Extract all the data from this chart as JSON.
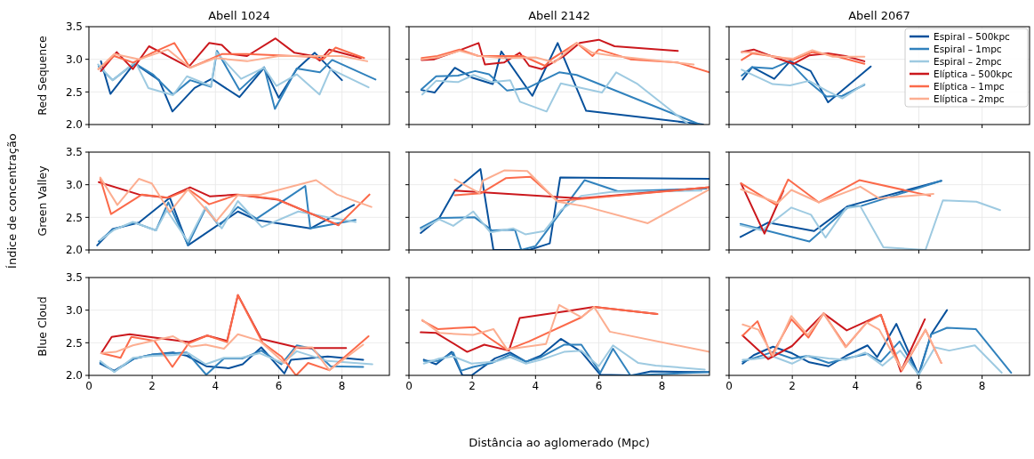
{
  "chart_data": [
    {
      "type": "line",
      "title": "Abell 1024",
      "ylabel": "Red Sequence",
      "xlim": [
        0,
        9.5
      ],
      "xticks": [
        0,
        2,
        4,
        6,
        8
      ],
      "ylim": [
        2,
        3.5
      ],
      "yticks": [
        {
          "value": 2,
          "label": "2.0"
        },
        {
          "value": 2.5,
          "label": "2.5"
        },
        {
          "value": 3,
          "label": "3.0"
        },
        {
          "value": 3.5,
          "label": "3.5"
        }
      ],
      "grid": true,
      "tick_labels": "y",
      "series": [
        {
          "color": "#08519c",
          "x": [
            0.38,
            0.68,
            1.44,
            2.22,
            2.64,
            3.34,
            3.88,
            4.76,
            5.54,
            6.0,
            6.57,
            7.14,
            8.0
          ],
          "values": [
            2.97,
            2.47,
            2.94,
            2.68,
            2.2,
            2.56,
            2.7,
            2.42,
            2.87,
            2.41,
            2.85,
            3.1,
            2.68
          ]
        },
        {
          "color": "#3182bd",
          "x": [
            0.31,
            0.75,
            1.44,
            2.02,
            2.66,
            3.2,
            3.86,
            4.05,
            4.76,
            5.54,
            5.88,
            6.57,
            7.3,
            7.69,
            9.06
          ],
          "values": [
            2.89,
            2.68,
            2.94,
            2.77,
            2.46,
            2.68,
            2.58,
            3.13,
            2.53,
            2.88,
            2.24,
            2.86,
            2.8,
            2.99,
            2.69
          ]
        },
        {
          "color": "#9ecae1",
          "x": [
            0.29,
            0.75,
            1.47,
            1.88,
            2.66,
            3.1,
            3.86,
            4.03,
            4.81,
            5.54,
            5.93,
            6.57,
            7.29,
            7.64,
            8.84
          ],
          "values": [
            2.92,
            2.68,
            2.96,
            2.56,
            2.45,
            2.74,
            2.59,
            3.11,
            2.7,
            2.87,
            2.59,
            2.77,
            2.46,
            2.85,
            2.57
          ]
        },
        {
          "color": "#cb181d",
          "x": [
            0.38,
            0.88,
            1.39,
            1.9,
            2.3,
            3.15,
            3.8,
            4.2,
            4.5,
            5.0,
            5.9,
            6.5,
            7.1,
            7.3,
            7.6,
            8.6
          ],
          "values": [
            2.82,
            3.11,
            2.85,
            3.2,
            3.1,
            2.88,
            3.25,
            3.22,
            3.08,
            3.05,
            3.32,
            3.1,
            3.05,
            2.98,
            3.15,
            3.02
          ]
        },
        {
          "color": "#fb6a4a",
          "x": [
            0.3,
            0.8,
            1.4,
            2.0,
            2.7,
            3.2,
            4.2,
            5.0,
            6.0,
            7.0,
            7.4,
            7.8,
            8.7
          ],
          "values": [
            2.85,
            3.05,
            2.95,
            3.1,
            3.25,
            2.87,
            3.08,
            3.08,
            3.06,
            3.04,
            3.0,
            3.18,
            3.02
          ]
        },
        {
          "color": "#fcae91",
          "x": [
            0.3,
            0.8,
            1.6,
            2.5,
            3.2,
            4.0,
            5.0,
            6.0,
            7.0,
            8.0,
            8.8
          ],
          "values": [
            2.85,
            3.08,
            3.0,
            3.15,
            2.87,
            3.02,
            2.97,
            3.05,
            3.05,
            3.05,
            2.97
          ]
        }
      ]
    },
    {
      "type": "line",
      "title": "Abell 2142",
      "xlim": [
        0,
        9.5
      ],
      "xticks": [
        0,
        2,
        4,
        6,
        8
      ],
      "ylim": [
        2,
        3.5
      ],
      "yticks": [
        {
          "value": 2,
          "label": null
        },
        {
          "value": 2.5,
          "label": null
        },
        {
          "value": 3,
          "label": null
        },
        {
          "value": 3.5,
          "label": null
        }
      ],
      "grid": true,
      "tick_labels": false,
      "series": [
        {
          "color": "#08519c",
          "x": [
            0.39,
            0.81,
            1.45,
            1.99,
            2.65,
            2.92,
            3.9,
            4.7,
            5.6,
            9.3
          ],
          "values": [
            2.53,
            2.49,
            2.87,
            2.72,
            2.62,
            3.12,
            2.44,
            3.25,
            2.21,
            2.0
          ]
        },
        {
          "color": "#3182bd",
          "x": [
            0.39,
            0.86,
            1.55,
            2.09,
            2.53,
            3.1,
            3.75,
            4.75,
            5.3,
            9.2
          ],
          "values": [
            2.54,
            2.74,
            2.75,
            2.82,
            2.77,
            2.52,
            2.56,
            2.8,
            2.76,
            2.0
          ]
        },
        {
          "color": "#9ecae1",
          "x": [
            0.42,
            0.86,
            1.55,
            2.04,
            2.63,
            3.2,
            3.51,
            4.35,
            4.8,
            6.1,
            6.55,
            7.2,
            8.85
          ],
          "values": [
            2.46,
            2.67,
            2.65,
            2.76,
            2.65,
            2.68,
            2.35,
            2.2,
            2.63,
            2.49,
            2.8,
            2.63,
            2.0
          ]
        },
        {
          "color": "#cb181d",
          "x": [
            0.4,
            0.8,
            1.5,
            2.2,
            2.4,
            3.0,
            3.5,
            3.8,
            4.2,
            4.9,
            5.4,
            6.0,
            6.5,
            8.5
          ],
          "values": [
            2.99,
            3.0,
            3.12,
            3.25,
            2.92,
            2.95,
            3.1,
            2.9,
            2.85,
            3.05,
            3.25,
            3.3,
            3.2,
            3.13
          ]
        },
        {
          "color": "#fb6a4a",
          "x": [
            0.4,
            0.9,
            1.6,
            2.2,
            3.0,
            3.6,
            4.3,
            4.5,
            5.3,
            5.8,
            6.0,
            7.0,
            8.5,
            9.5
          ],
          "values": [
            3.02,
            3.05,
            3.15,
            3.05,
            3.05,
            3.05,
            2.9,
            3.0,
            3.25,
            3.05,
            3.15,
            3.0,
            2.95,
            2.8
          ]
        },
        {
          "color": "#fcae91",
          "x": [
            0.4,
            0.9,
            1.6,
            2.2,
            3.0,
            4.0,
            4.6,
            5.3,
            5.8,
            6.5,
            7.5,
            9.0
          ],
          "values": [
            3.0,
            3.03,
            3.13,
            3.05,
            3.02,
            3.03,
            2.95,
            3.25,
            3.1,
            3.05,
            3.0,
            2.92
          ]
        }
      ]
    },
    {
      "type": "line",
      "title": "Abell 2067",
      "xlim": [
        0,
        9.5
      ],
      "xticks": [
        0,
        2,
        4,
        6,
        8
      ],
      "ylim": [
        2,
        3.5
      ],
      "yticks": [
        {
          "value": 2,
          "label": null
        },
        {
          "value": 2.5,
          "label": null
        },
        {
          "value": 3,
          "label": null
        },
        {
          "value": 3.5,
          "label": null
        }
      ],
      "grid": true,
      "tick_labels": false,
      "legend": "top right",
      "series": [
        {
          "name": "Espiral – 500kpc",
          "color": "#08519c",
          "x": [
            0.43,
            0.73,
            1.43,
            1.93,
            2.58,
            3.13,
            4.48
          ],
          "values": [
            2.69,
            2.88,
            2.7,
            2.97,
            2.82,
            2.34,
            2.89
          ]
        },
        {
          "name": "Espiral – 1mpc",
          "color": "#3182bd",
          "x": [
            0.4,
            0.73,
            1.38,
            1.9,
            2.53,
            3.08,
            3.58,
            4.28
          ],
          "values": [
            2.75,
            2.88,
            2.86,
            2.97,
            2.65,
            2.43,
            2.44,
            2.61
          ]
        },
        {
          "name": "Espiral – 2mpc",
          "color": "#9ecae1",
          "x": [
            0.4,
            1.38,
            1.93,
            2.53,
            3.08,
            3.58,
            4.28
          ],
          "values": [
            2.84,
            2.62,
            2.6,
            2.67,
            2.52,
            2.4,
            2.62
          ]
        },
        {
          "name": "Elíptica – 500kpc",
          "color": "#cb181d",
          "x": [
            0.4,
            0.78,
            1.38,
            2.03,
            2.53,
            3.13,
            3.68,
            4.28
          ],
          "values": [
            3.11,
            3.15,
            3.04,
            2.93,
            3.06,
            3.09,
            3.05,
            2.97
          ]
        },
        {
          "name": "Elíptica – 1mpc",
          "color": "#fb6a4a",
          "x": [
            0.4,
            0.73,
            1.48,
            2.03,
            2.63,
            3.28,
            4.28
          ],
          "values": [
            2.99,
            3.09,
            3.04,
            2.99,
            3.11,
            3.06,
            2.93
          ]
        },
        {
          "name": "Elíptica – 2mpc",
          "color": "#fcae91",
          "x": [
            0.4,
            0.88,
            1.38,
            2.03,
            2.63,
            3.28,
            4.28
          ],
          "values": [
            3.11,
            3.1,
            3.04,
            3.01,
            3.14,
            3.04,
            3.04
          ]
        }
      ]
    },
    {
      "type": "line",
      "ylabel": "Green Valley",
      "annotations": [
        "Índice de concentração"
      ],
      "xlim": [
        0,
        9.5
      ],
      "xticks": [
        0,
        2,
        4,
        6,
        8
      ],
      "ylim": [
        2,
        3.5
      ],
      "yticks": [
        {
          "value": 2,
          "label": "2.0"
        },
        {
          "value": 2.5,
          "label": "2.5"
        },
        {
          "value": 3,
          "label": "3.0"
        },
        {
          "value": 3.5,
          "label": "3.5"
        }
      ],
      "grid": true,
      "tick_labels": "y",
      "series": [
        {
          "color": "#08519c",
          "x": [
            0.26,
            0.75,
            1.58,
            2.56,
            3.13,
            4.71,
            5.3,
            7.0,
            8.38
          ],
          "values": [
            2.07,
            2.32,
            2.42,
            2.8,
            2.07,
            2.59,
            2.46,
            2.33,
            2.69
          ]
        },
        {
          "color": "#3182bd",
          "x": [
            0.31,
            0.75,
            1.44,
            2.12,
            2.51,
            3.13,
            3.69,
            4.12,
            4.71,
            5.3,
            6.84,
            7.0,
            8.43
          ],
          "values": [
            2.13,
            2.31,
            2.42,
            2.3,
            2.73,
            2.08,
            2.64,
            2.37,
            2.66,
            2.48,
            2.98,
            2.33,
            2.46
          ]
        },
        {
          "color": "#9ecae1",
          "x": [
            0.36,
            0.8,
            1.39,
            2.12,
            2.46,
            3.13,
            3.69,
            4.2,
            4.71,
            5.47,
            6.62,
            7.55,
            8.43
          ],
          "values": [
            2.15,
            2.31,
            2.43,
            2.3,
            2.61,
            2.13,
            2.66,
            2.33,
            2.75,
            2.35,
            2.59,
            2.5,
            2.43
          ]
        },
        {
          "color": "#cb181d",
          "x": [
            0.31,
            1.58,
            2.46,
            3.2,
            3.83,
            4.66,
            5.98,
            7.89
          ],
          "values": [
            3.04,
            2.85,
            2.8,
            2.96,
            2.82,
            2.85,
            2.77,
            2.38
          ]
        },
        {
          "color": "#fb6a4a",
          "x": [
            0.36,
            0.7,
            1.68,
            2.51,
            3.15,
            3.8,
            4.71,
            5.93,
            7.89,
            8.87
          ],
          "values": [
            3.09,
            2.55,
            2.85,
            2.8,
            2.93,
            2.7,
            2.85,
            2.78,
            2.38,
            2.85
          ]
        },
        {
          "color": "#fcae91",
          "x": [
            0.36,
            0.9,
            1.58,
            1.99,
            2.56,
            3.13,
            4.03,
            4.71,
            5.44,
            7.18,
            7.84,
            8.93
          ],
          "values": [
            3.11,
            2.69,
            3.09,
            3.02,
            2.58,
            2.93,
            2.44,
            2.84,
            2.85,
            3.07,
            2.85,
            2.66
          ]
        }
      ]
    },
    {
      "type": "line",
      "xlim": [
        0,
        9.5
      ],
      "xticks": [
        0,
        2,
        4,
        6,
        8
      ],
      "ylim": [
        2,
        3.5
      ],
      "yticks": [
        {
          "value": 2,
          "label": null
        },
        {
          "value": 2.5,
          "label": null
        },
        {
          "value": 3,
          "label": null
        },
        {
          "value": 3.5,
          "label": null
        }
      ],
      "grid": true,
      "tick_labels": false,
      "series": [
        {
          "color": "#08519c",
          "x": [
            0.37,
            0.96,
            1.45,
            2.26,
            2.67,
            3.8,
            4.45,
            4.78,
            9.5
          ],
          "values": [
            2.26,
            2.49,
            2.91,
            3.24,
            2.0,
            2.0,
            2.1,
            3.11,
            3.09
          ]
        },
        {
          "color": "#3182bd",
          "x": [
            0.37,
            0.96,
            2.08,
            2.62,
            3.35,
            3.55,
            4.0,
            5.55,
            6.6,
            9.4
          ],
          "values": [
            2.34,
            2.49,
            2.5,
            2.3,
            2.31,
            2.0,
            2.06,
            3.07,
            2.9,
            2.94
          ]
        },
        {
          "color": "#9ecae1",
          "x": [
            0.37,
            0.96,
            1.4,
            2.03,
            2.57,
            3.3,
            3.68,
            4.28,
            4.8,
            5.45,
            6.4,
            9.25
          ],
          "values": [
            2.31,
            2.47,
            2.37,
            2.59,
            2.27,
            2.33,
            2.24,
            2.29,
            2.61,
            2.83,
            2.89,
            2.91
          ]
        },
        {
          "color": "#cb181d",
          "x": [
            1.45,
            5.4,
            9.5
          ],
          "values": [
            2.91,
            2.79,
            2.96
          ]
        },
        {
          "color": "#fb6a4a",
          "x": [
            1.45,
            2.28,
            3.06,
            3.84,
            4.7,
            5.4,
            9.5
          ],
          "values": [
            2.84,
            2.87,
            3.1,
            3.12,
            2.75,
            2.78,
            2.96
          ]
        },
        {
          "color": "#fcae91",
          "x": [
            1.45,
            2.23,
            2.33,
            3.01,
            3.74,
            4.7,
            5.55,
            7.55,
            9.5
          ],
          "values": [
            3.08,
            2.87,
            3.06,
            3.22,
            3.21,
            2.74,
            2.67,
            2.41,
            2.93
          ]
        }
      ]
    },
    {
      "type": "line",
      "xlim": [
        0,
        9.5
      ],
      "xticks": [
        0,
        2,
        4,
        6,
        8
      ],
      "ylim": [
        2,
        3.5
      ],
      "yticks": [
        {
          "value": 2,
          "label": null
        },
        {
          "value": 2.5,
          "label": null
        },
        {
          "value": 3,
          "label": null
        },
        {
          "value": 3.5,
          "label": null
        }
      ],
      "grid": true,
      "tick_labels": false,
      "series": [
        {
          "color": "#08519c",
          "x": [
            0.36,
            1.24,
            2.69,
            3.75,
            6.71
          ],
          "values": [
            2.2,
            2.42,
            2.29,
            2.67,
            3.06
          ]
        },
        {
          "color": "#3182bd",
          "x": [
            0.36,
            2.54,
            3.8,
            4.15,
            6.71
          ],
          "values": [
            2.4,
            2.13,
            2.67,
            2.67,
            3.06
          ]
        },
        {
          "color": "#9ecae1",
          "x": [
            0.36,
            1.04,
            1.97,
            2.59,
            3.05,
            3.7,
            4.15,
            4.88,
            6.21,
            6.76,
            7.82,
            8.57
          ],
          "values": [
            2.38,
            2.3,
            2.65,
            2.54,
            2.19,
            2.64,
            2.67,
            2.04,
            2.0,
            2.76,
            2.74,
            2.61
          ]
        },
        {
          "color": "#cb181d",
          "x": [
            0.38,
            1.12,
            1.72
          ],
          "values": [
            3.02,
            2.25,
            2.91
          ]
        },
        {
          "color": "#fb6a4a",
          "x": [
            0.38,
            1.49,
            1.87,
            2.84,
            4.12,
            6.36
          ],
          "values": [
            3.02,
            2.69,
            3.08,
            2.73,
            3.07,
            2.83
          ]
        },
        {
          "color": "#fcae91",
          "x": [
            0.38,
            1.54,
            1.97,
            2.84,
            4.15,
            4.75,
            6.46
          ],
          "values": [
            2.93,
            2.72,
            2.92,
            2.73,
            2.97,
            2.79,
            2.86
          ]
        }
      ]
    },
    {
      "type": "line",
      "ylabel": "Blue Cloud",
      "xlim": [
        0,
        9.5
      ],
      "xticks": [
        0,
        2,
        4,
        6,
        8
      ],
      "ylim": [
        2,
        3.5
      ],
      "yticks": [
        {
          "value": 2,
          "label": "2.0"
        },
        {
          "value": 2.5,
          "label": "2.5"
        },
        {
          "value": 3,
          "label": "3.0"
        },
        {
          "value": 3.5,
          "label": "3.5"
        }
      ],
      "grid": true,
      "series": [
        {
          "color": "#08519c",
          "x": [
            0.36,
            0.8,
            1.44,
            2.02,
            2.66,
            3.1,
            3.71,
            4.42,
            4.86,
            5.45,
            6.18,
            6.39,
            7.55,
            8.67
          ],
          "values": [
            2.18,
            2.07,
            2.26,
            2.32,
            2.35,
            2.3,
            2.14,
            2.11,
            2.17,
            2.43,
            2.03,
            2.24,
            2.29,
            2.24
          ]
        },
        {
          "color": "#3182bd",
          "x": [
            0.36,
            0.8,
            1.44,
            2.02,
            3.1,
            3.71,
            4.27,
            4.86,
            5.45,
            6.08,
            6.57,
            7.06,
            7.64,
            8.67
          ],
          "values": [
            2.2,
            2.06,
            2.26,
            2.32,
            2.35,
            2.01,
            2.26,
            2.26,
            2.38,
            2.17,
            2.46,
            2.41,
            2.14,
            2.13
          ]
        },
        {
          "color": "#9ecae1",
          "x": [
            0.36,
            0.8,
            1.39,
            2.02,
            2.66,
            3.15,
            3.69,
            4.27,
            4.81,
            5.4,
            6.13,
            6.57,
            7.55,
            8.96
          ],
          "values": [
            2.22,
            2.05,
            2.27,
            2.3,
            2.31,
            2.34,
            2.17,
            2.27,
            2.27,
            2.34,
            2.19,
            2.37,
            2.22,
            2.17
          ]
        },
        {
          "color": "#cb181d",
          "x": [
            0.39,
            0.72,
            1.29,
            2.07,
            3.15,
            3.74,
            4.37,
            4.71,
            5.45,
            6.67,
            8.13
          ],
          "values": [
            2.34,
            2.59,
            2.63,
            2.58,
            2.51,
            2.61,
            2.53,
            3.23,
            2.56,
            2.42,
            2.42
          ]
        },
        {
          "color": "#fb6a4a",
          "x": [
            0.39,
            1.0,
            1.34,
            2.07,
            2.64,
            3.15,
            3.74,
            4.37,
            4.71,
            5.49,
            6.08,
            6.55,
            6.93,
            7.6,
            8.84
          ],
          "values": [
            2.34,
            2.27,
            2.59,
            2.53,
            2.13,
            2.49,
            2.61,
            2.51,
            3.23,
            2.5,
            2.29,
            2.0,
            2.19,
            2.08,
            2.6
          ]
        },
        {
          "color": "#fcae91",
          "x": [
            0.39,
            0.85,
            1.39,
            2.66,
            3.23,
            3.69,
            4.27,
            4.71,
            5.4,
            6.18,
            6.57,
            7.06,
            7.6,
            8.67
          ],
          "values": [
            2.34,
            2.36,
            2.46,
            2.6,
            2.44,
            2.47,
            2.41,
            2.63,
            2.53,
            2.19,
            2.43,
            2.43,
            2.08,
            2.47
          ]
        }
      ]
    },
    {
      "type": "line",
      "xlabel": "Distância ao aglomerado (Mpc)",
      "xlim": [
        0,
        9.5
      ],
      "xticks": [
        0,
        2,
        4,
        6,
        8
      ],
      "ylim": [
        2,
        3.5
      ],
      "yticks": [
        {
          "value": 2,
          "label": null
        },
        {
          "value": 2.5,
          "label": null
        },
        {
          "value": 3,
          "label": null
        },
        {
          "value": 3.5,
          "label": null
        }
      ],
      "grid": true,
      "tick_labels": "x",
      "series": [
        {
          "color": "#08519c",
          "x": [
            0.47,
            0.86,
            1.35,
            1.69,
            1.98,
            2.72,
            3.2,
            3.7,
            4.16,
            4.8,
            5.45,
            6.05,
            7.05,
            7.65,
            9.5
          ],
          "values": [
            2.24,
            2.17,
            2.36,
            2.0,
            2.0,
            2.26,
            2.35,
            2.21,
            2.3,
            2.56,
            2.36,
            2.01,
            2.0,
            2.06,
            2.05
          ]
        },
        {
          "color": "#3182bd",
          "x": [
            0.47,
            0.91,
            1.4,
            1.64,
            2.03,
            2.62,
            3.2,
            3.7,
            4.18,
            4.9,
            5.45,
            6.05,
            6.45,
            7.0,
            9.5
          ],
          "values": [
            2.22,
            2.22,
            2.35,
            2.07,
            2.13,
            2.19,
            2.32,
            2.21,
            2.28,
            2.47,
            2.47,
            2.04,
            2.41,
            2.0,
            2.05
          ]
        },
        {
          "color": "#9ecae1",
          "x": [
            0.47,
            0.96,
            1.4,
            1.98,
            2.72,
            3.2,
            3.7,
            4.18,
            4.9,
            5.45,
            6.0,
            6.45,
            7.25,
            7.8,
            9.35
          ],
          "values": [
            2.18,
            2.26,
            2.29,
            2.18,
            2.21,
            2.28,
            2.18,
            2.24,
            2.36,
            2.38,
            2.14,
            2.46,
            2.19,
            2.15,
            2.09
          ]
        },
        {
          "color": "#cb181d",
          "x": [
            0.37,
            0.86,
            1.84,
            2.38,
            3.16,
            3.5,
            5.04,
            5.85,
            7.85
          ],
          "values": [
            2.66,
            2.65,
            2.36,
            2.47,
            2.38,
            2.88,
            2.99,
            3.05,
            2.94
          ]
        },
        {
          "color": "#fb6a4a",
          "x": [
            0.42,
            0.91,
            2.08,
            2.52,
            3.1,
            3.79,
            5.45,
            5.85,
            7.85
          ],
          "values": [
            2.84,
            2.71,
            2.74,
            2.58,
            2.39,
            2.52,
            2.89,
            3.05,
            2.94
          ]
        },
        {
          "color": "#fcae91",
          "x": [
            0.42,
            0.96,
            2.03,
            2.67,
            3.1,
            4.33,
            4.75,
            5.45,
            5.85,
            6.35,
            9.5
          ],
          "values": [
            2.85,
            2.65,
            2.62,
            2.71,
            2.4,
            2.48,
            3.08,
            2.89,
            3.05,
            2.67,
            2.36
          ]
        }
      ]
    },
    {
      "type": "line",
      "xlim": [
        0,
        9.5
      ],
      "xticks": [
        0,
        2,
        4,
        6,
        8
      ],
      "ylim": [
        2,
        3.5
      ],
      "yticks": [
        {
          "value": 2,
          "label": null
        },
        {
          "value": 2.5,
          "label": null
        },
        {
          "value": 3,
          "label": null
        },
        {
          "value": 3.5,
          "label": null
        }
      ],
      "grid": true,
      "tick_labels": "x",
      "series": [
        {
          "color": "#08519c",
          "x": [
            0.43,
            0.78,
            1.39,
            1.99,
            2.54,
            3.15,
            3.7,
            4.38,
            4.68,
            5.29,
            5.99,
            6.39,
            6.89
          ],
          "values": [
            2.18,
            2.31,
            2.44,
            2.34,
            2.2,
            2.14,
            2.3,
            2.46,
            2.28,
            2.79,
            2.01,
            2.63,
            3.0
          ]
        },
        {
          "color": "#3182bd",
          "x": [
            0.43,
            1.39,
            1.99,
            2.49,
            3.15,
            3.7,
            4.38,
            4.8,
            5.39,
            6.0,
            6.39,
            6.89,
            7.8,
            8.92
          ],
          "values": [
            2.21,
            2.36,
            2.26,
            2.3,
            2.19,
            2.26,
            2.33,
            2.21,
            2.52,
            2.0,
            2.63,
            2.73,
            2.71,
            2.04
          ]
        },
        {
          "color": "#9ecae1",
          "x": [
            0.43,
            0.78,
            1.39,
            1.99,
            2.49,
            3.15,
            3.7,
            4.3,
            4.85,
            5.41,
            6.0,
            6.51,
            6.96,
            7.77,
            8.62
          ],
          "values": [
            2.24,
            2.25,
            2.29,
            2.18,
            2.3,
            2.26,
            2.24,
            2.35,
            2.15,
            2.38,
            2.01,
            2.43,
            2.38,
            2.46,
            2.04
          ]
        },
        {
          "color": "#cb181d",
          "x": [
            0.43,
            1.24,
            1.99,
            2.99,
            3.72,
            4.8,
            5.43,
            6.19
          ],
          "values": [
            2.61,
            2.25,
            2.45,
            2.95,
            2.69,
            2.93,
            2.06,
            2.86
          ]
        },
        {
          "color": "#fb6a4a",
          "x": [
            0.43,
            0.9,
            1.34,
            1.97,
            2.51,
            2.99,
            3.7,
            4.35,
            4.8,
            5.46,
            6.21,
            6.71
          ],
          "values": [
            2.61,
            2.83,
            2.3,
            2.86,
            2.58,
            2.95,
            2.44,
            2.81,
            2.93,
            2.07,
            2.7,
            2.19
          ]
        },
        {
          "color": "#fcae91",
          "x": [
            0.43,
            0.93,
            1.39,
            1.97,
            2.49,
            2.99,
            3.68,
            4.35,
            4.75,
            5.46,
            6.21,
            6.71
          ],
          "values": [
            2.78,
            2.7,
            2.3,
            2.91,
            2.62,
            2.95,
            2.43,
            2.81,
            2.7,
            2.09,
            2.7,
            2.19
          ]
        }
      ]
    }
  ]
}
